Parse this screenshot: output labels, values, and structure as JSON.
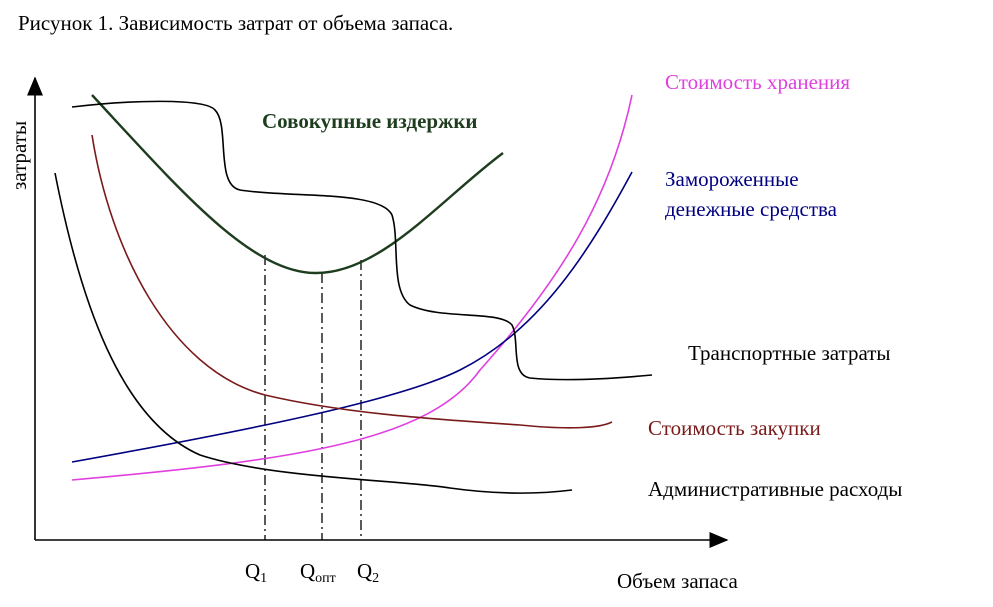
{
  "title": "Рисунок 1. Зависимость затрат от объема запаса.",
  "axes": {
    "y_label": "затраты",
    "x_label": "Объем запаса"
  },
  "curves": [
    {
      "label": "Совокупные издержки"
    },
    {
      "label": "Стоимость хранения"
    },
    {
      "label_lines": [
        "Замороженные",
        "денежные средства"
      ]
    },
    {
      "label": "Транспортные затраты"
    },
    {
      "label": "Стоимость закупки"
    },
    {
      "label": "Административные расходы"
    }
  ],
  "quantities": [
    {
      "symbol": "Q",
      "subscript": "1"
    },
    {
      "symbol": "Q",
      "subscript": "опт"
    },
    {
      "symbol": "Q",
      "subscript": "2"
    }
  ]
}
